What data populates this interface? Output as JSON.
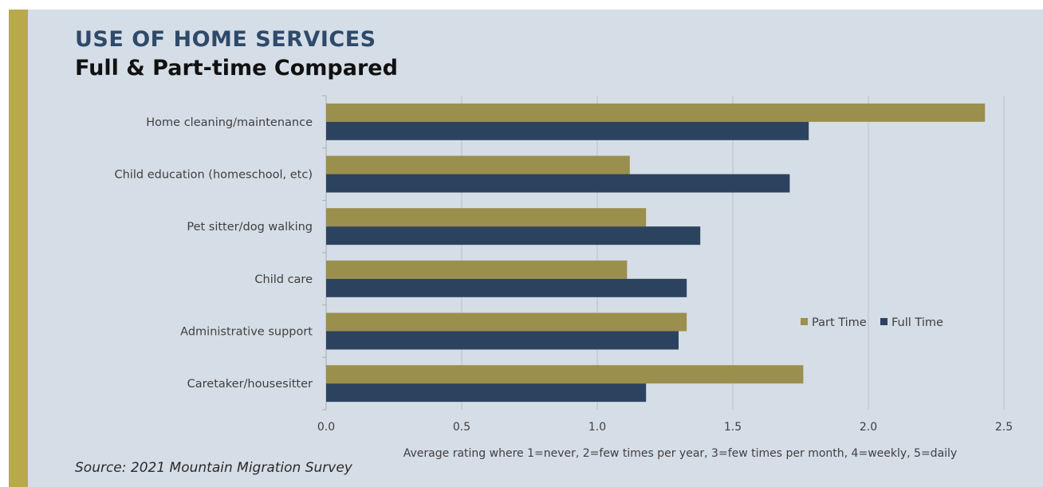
{
  "header": {
    "title": "USE OF HOME SERVICES",
    "subtitle": "Full & Part-time Compared"
  },
  "footer": {
    "source": "Source: 2021 Mountain Migration Survey"
  },
  "colors": {
    "part_time": "#9b8f4e",
    "full_time": "#2c4360",
    "accent": "#b8a94b",
    "background": "#d5dde6",
    "gridline": "#b9c2cc"
  },
  "chart_data": {
    "type": "bar",
    "orientation": "horizontal",
    "categories": [
      "Home cleaning/maintenance",
      "Child education (homeschool, etc)",
      "Pet sitter/dog walking",
      "Child care",
      "Administrative support",
      "Caretaker/housesitter"
    ],
    "series": [
      {
        "name": "Part Time",
        "values": [
          2.43,
          1.12,
          1.18,
          1.11,
          1.33,
          1.76
        ]
      },
      {
        "name": "Full Time",
        "values": [
          1.78,
          1.71,
          1.38,
          1.33,
          1.3,
          1.18
        ]
      }
    ],
    "xlabel": "Average rating where 1=never, 2=few times per year, 3=few times per month, 4=weekly, 5=daily",
    "ylabel": "",
    "xlim": [
      0,
      2.5
    ],
    "xticks": [
      "0.0",
      "0.5",
      "1.0",
      "1.5",
      "2.0",
      "2.5"
    ],
    "grid": true,
    "legend_position": "right"
  }
}
